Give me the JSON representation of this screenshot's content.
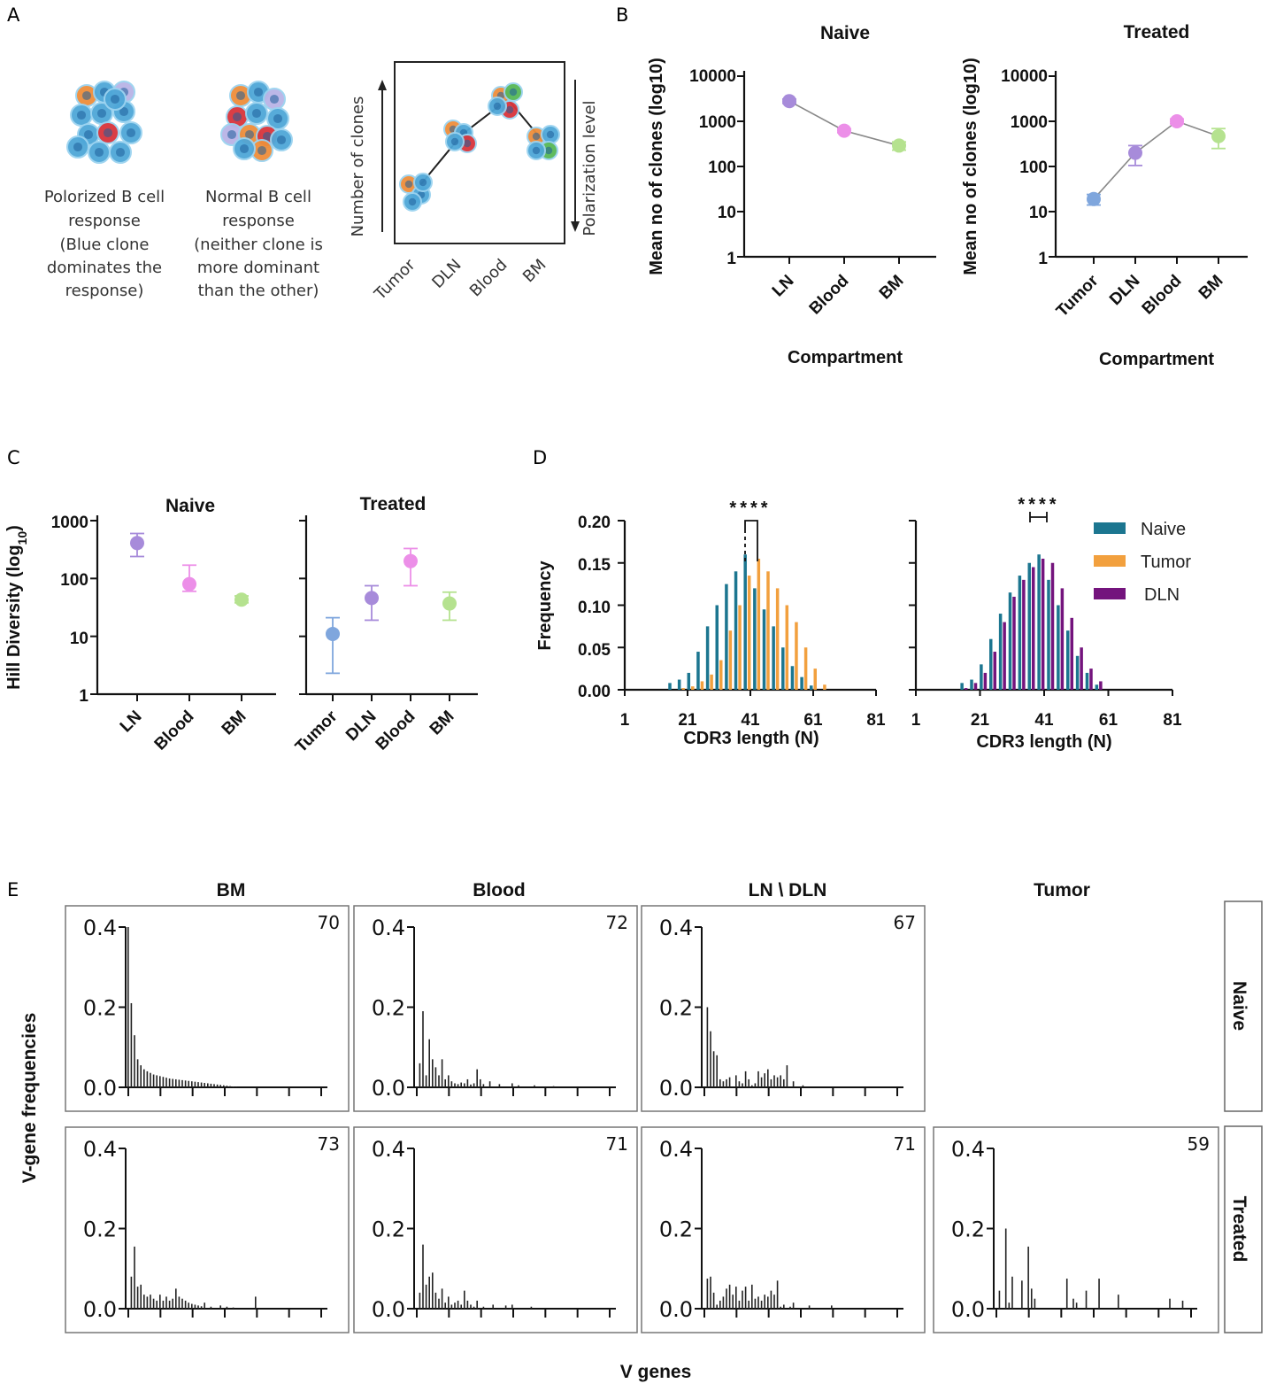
{
  "panel_labels": {
    "A": "A",
    "B": "B",
    "C": "C",
    "D": "D",
    "E": "E"
  },
  "panel_a": {
    "polarized_lines": [
      "Polorized B cell",
      "response",
      "(Blue clone",
      "dominates the",
      "response)"
    ],
    "normal_lines": [
      "Normal B cell",
      "response",
      "(neither clone is",
      "more dominant",
      "than the other)"
    ],
    "y_label": "Number of clones",
    "right_label": "Polarization level",
    "x_ticks": [
      "Tumor",
      "DLN",
      "Blood",
      "BM"
    ]
  },
  "colors": {
    "purple": "#a78bda",
    "pink": "#ec8fe8",
    "green": "#b5e28f",
    "blue": "#7fa6dd",
    "naive": "#1c7690",
    "tumor": "#f2a03e",
    "dln": "#74147d",
    "cell_blue": "#4fa7d8",
    "cell_red": "#d9343c",
    "cell_orange": "#ef8e3a"
  },
  "chart_data": [
    {
      "id": "B_naive",
      "type": "scatter",
      "title": "Naive",
      "ylabel": "Mean no of clones (log10)",
      "xlabel": "Compartment",
      "yscale": "log",
      "ylim": [
        1,
        10000
      ],
      "ytick_labels": [
        "10000",
        "1000",
        "100",
        "10",
        "1"
      ],
      "categories": [
        "LN",
        "Blood",
        "BM"
      ],
      "values": [
        2800,
        620,
        290
      ],
      "err_low": [
        2500,
        560,
        230
      ],
      "err_high": [
        3100,
        680,
        350
      ],
      "colors": [
        "#a78bda",
        "#ec8fe8",
        "#b5e28f"
      ]
    },
    {
      "id": "B_treated",
      "type": "scatter",
      "title": "Treated",
      "ylabel": "Mean no of clones (log10)",
      "xlabel": "Compartment",
      "yscale": "log",
      "ylim": [
        1,
        10000
      ],
      "ytick_labels": [
        "10000",
        "1000",
        "100",
        "10",
        "1"
      ],
      "categories": [
        "Tumor",
        "DLN",
        "Blood",
        "BM"
      ],
      "values": [
        19,
        200,
        1000,
        470
      ],
      "err_low": [
        14,
        105,
        880,
        250
      ],
      "err_high": [
        24,
        290,
        1130,
        690
      ],
      "colors": [
        "#7fa6dd",
        "#a78bda",
        "#ec8fe8",
        "#b5e28f"
      ]
    },
    {
      "id": "C_naive",
      "type": "scatter",
      "title": "Naive",
      "ylabel": "Hill Diversity (log10)",
      "yscale": "log",
      "ylim": [
        1,
        1000
      ],
      "ytick_labels": [
        "1000",
        "100",
        "10",
        "1"
      ],
      "categories": [
        "LN",
        "Blood",
        "BM"
      ],
      "values": [
        410,
        80,
        43
      ],
      "err_low": [
        240,
        60,
        38
      ],
      "err_high": [
        600,
        170,
        50
      ],
      "colors": [
        "#a78bda",
        "#ec8fe8",
        "#b5e28f"
      ]
    },
    {
      "id": "C_treated",
      "type": "scatter",
      "title": "Treated",
      "ylabel": "",
      "yscale": "log",
      "ylim": [
        1,
        1000
      ],
      "categories": [
        "Tumor",
        "DLN",
        "Blood",
        "BM"
      ],
      "values": [
        11,
        46,
        200,
        37
      ],
      "err_low": [
        2.3,
        19,
        75,
        19
      ],
      "err_high": [
        21,
        75,
        330,
        58
      ],
      "colors": [
        "#7fa6dd",
        "#a78bda",
        "#ec8fe8",
        "#b5e28f"
      ]
    },
    {
      "id": "D_naive_tumor",
      "type": "bar",
      "ylabel": "Frequency",
      "xlabel": "CDR3 length (N)",
      "ylim": [
        0,
        0.2
      ],
      "xlim": [
        1,
        81
      ],
      "ytick_labels": [
        "0.20",
        "0.15",
        "0.10",
        "0.05",
        "0.00"
      ],
      "xtick_labels": [
        "1",
        "21",
        "41",
        "61",
        "81"
      ],
      "significance": "****",
      "x": [
        16,
        19,
        22,
        25,
        28,
        31,
        34,
        37,
        40,
        43,
        46,
        49,
        52,
        55,
        58,
        61,
        64
      ],
      "series": [
        {
          "name": "Naive",
          "color": "#1c7690",
          "values": [
            0.008,
            0.012,
            0.02,
            0.045,
            0.075,
            0.1,
            0.125,
            0.14,
            0.16,
            0.12,
            0.095,
            0.075,
            0.05,
            0.028,
            0.015,
            0.005,
            0.0
          ]
        },
        {
          "name": "Tumor",
          "color": "#f2a03e",
          "values": [
            0.0,
            0.002,
            0.004,
            0.01,
            0.018,
            0.035,
            0.07,
            0.1,
            0.135,
            0.155,
            0.14,
            0.12,
            0.1,
            0.08,
            0.05,
            0.025,
            0.006
          ]
        }
      ]
    },
    {
      "id": "D_naive_dln",
      "type": "bar",
      "xlabel": "CDR3 length (N)",
      "ylim": [
        0,
        0.2
      ],
      "xlim": [
        1,
        81
      ],
      "xtick_labels": [
        "1",
        "21",
        "41",
        "61",
        "81"
      ],
      "significance": "****",
      "x": [
        16,
        19,
        22,
        25,
        28,
        31,
        34,
        37,
        40,
        43,
        46,
        49,
        52,
        55,
        58
      ],
      "series": [
        {
          "name": "Naive",
          "color": "#1c7690",
          "values": [
            0.008,
            0.012,
            0.03,
            0.06,
            0.09,
            0.115,
            0.135,
            0.15,
            0.16,
            0.13,
            0.1,
            0.07,
            0.04,
            0.02,
            0.006
          ]
        },
        {
          "name": "DLN",
          "color": "#74147d",
          "values": [
            0.002,
            0.008,
            0.02,
            0.045,
            0.08,
            0.11,
            0.13,
            0.145,
            0.155,
            0.15,
            0.12,
            0.085,
            0.05,
            0.025,
            0.01
          ]
        }
      ]
    },
    {
      "id": "E",
      "type": "bar",
      "title_cols": [
        "BM",
        "Blood",
        "LN \\ DLN",
        "Tumor"
      ],
      "row_labels": [
        "Naive",
        "Treated"
      ],
      "ylabel": "V-gene frequencies",
      "xlabel": "V genes",
      "ytick_labels": [
        "0.4",
        "0.2",
        "0.0"
      ],
      "ylim": [
        0,
        0.4
      ],
      "panels": [
        {
          "row": 0,
          "col": 0,
          "count": "70",
          "values": [
            0.4,
            0.21,
            0.13,
            0.07,
            0.055,
            0.045,
            0.04,
            0.036,
            0.032,
            0.03,
            0.028,
            0.026,
            0.024,
            0.022,
            0.021,
            0.02,
            0.019,
            0.018,
            0.017,
            0.016,
            0.015,
            0.014,
            0.013,
            0.012,
            0.011,
            0.01,
            0.009,
            0.008,
            0.007,
            0.006,
            0.005,
            0.004,
            0.003,
            0.002,
            0.001
          ]
        },
        {
          "row": 0,
          "col": 1,
          "count": "72",
          "values": [
            0.0,
            0.06,
            0.19,
            0.03,
            0.12,
            0.07,
            0.05,
            0.03,
            0.07,
            0.02,
            0.03,
            0.015,
            0.01,
            0.008,
            0.012,
            0.01,
            0.02,
            0.007,
            0.01,
            0.045,
            0.02,
            0.008,
            0.0,
            0.015,
            0.0,
            0.0,
            0.008,
            0.0,
            0.0,
            0.0,
            0.01,
            0.0,
            0.005,
            0.0,
            0.0,
            0.0,
            0.0,
            0.005,
            0.0,
            0.0,
            0.0,
            0.0,
            0.0,
            0.003
          ]
        },
        {
          "row": 0,
          "col": 2,
          "count": "67",
          "values": [
            0.0,
            0.2,
            0.14,
            0.09,
            0.08,
            0.02,
            0.015,
            0.02,
            0.025,
            0.0,
            0.03,
            0.015,
            0.01,
            0.04,
            0.02,
            0.005,
            0.01,
            0.04,
            0.025,
            0.035,
            0.045,
            0.02,
            0.03,
            0.025,
            0.03,
            0.02,
            0.055,
            0.0,
            0.015,
            0.0,
            0.0,
            0.005
          ]
        },
        {
          "row": 1,
          "col": 0,
          "count": "73",
          "values": [
            0.0,
            0.08,
            0.155,
            0.055,
            0.06,
            0.035,
            0.03,
            0.035,
            0.025,
            0.02,
            0.035,
            0.02,
            0.03,
            0.02,
            0.025,
            0.05,
            0.03,
            0.025,
            0.02,
            0.015,
            0.012,
            0.01,
            0.008,
            0.006,
            0.015,
            0.0,
            0.005,
            0.0,
            0.0,
            0.008,
            0.0,
            0.005,
            0.0,
            0.003,
            0.0,
            0.0,
            0.0,
            0.0,
            0.0,
            0.0,
            0.03
          ]
        },
        {
          "row": 1,
          "col": 1,
          "count": "71",
          "values": [
            0.0,
            0.04,
            0.16,
            0.06,
            0.08,
            0.09,
            0.04,
            0.025,
            0.05,
            0.015,
            0.03,
            0.01,
            0.015,
            0.02,
            0.01,
            0.045,
            0.02,
            0.01,
            0.005,
            0.02,
            0.0,
            0.005,
            0.0,
            0.0,
            0.01,
            0.0,
            0.0,
            0.0,
            0.008,
            0.0,
            0.01,
            0.0,
            0.0,
            0.0,
            0.0,
            0.0,
            0.005
          ]
        },
        {
          "row": 1,
          "col": 2,
          "count": "71",
          "values": [
            0.0,
            0.075,
            0.08,
            0.04,
            0.01,
            0.02,
            0.03,
            0.05,
            0.06,
            0.035,
            0.055,
            0.02,
            0.045,
            0.055,
            0.02,
            0.06,
            0.025,
            0.03,
            0.02,
            0.035,
            0.03,
            0.045,
            0.035,
            0.07,
            0.005,
            0.01,
            0.0,
            0.005,
            0.015,
            0.0,
            0.0,
            0.0,
            0.0,
            0.008,
            0.0,
            0.0,
            0.0,
            0.0,
            0.0,
            0.0,
            0.008
          ]
        },
        {
          "row": 1,
          "col": 3,
          "count": "59",
          "values": [
            0.0,
            0.045,
            0.0,
            0.2,
            0.015,
            0.08,
            0.0,
            0.0,
            0.07,
            0.0,
            0.155,
            0.05,
            0.025,
            0.0,
            0.0,
            0.0,
            0.0,
            0.0,
            0.0,
            0.0,
            0.0,
            0.0,
            0.075,
            0.0,
            0.025,
            0.015,
            0.0,
            0.0,
            0.045,
            0.0,
            0.0,
            0.0,
            0.075,
            0.0,
            0.0,
            0.0,
            0.0,
            0.0,
            0.035,
            0.0,
            0.0,
            0.0,
            0.0,
            0.0,
            0.0,
            0.0,
            0.0,
            0.0,
            0.0,
            0.0,
            0.0,
            0.0,
            0.0,
            0.0,
            0.025,
            0.0,
            0.0,
            0.0,
            0.02
          ]
        }
      ]
    }
  ],
  "legend_d": [
    "Naive",
    "Tumor",
    "DLN"
  ]
}
